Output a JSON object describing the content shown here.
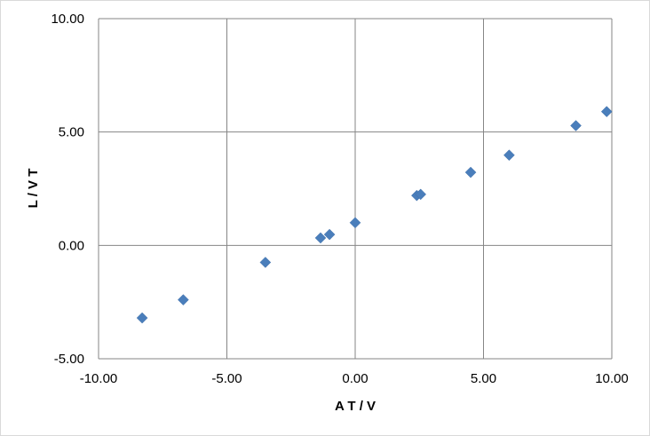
{
  "chart_data": {
    "type": "scatter",
    "title": "",
    "xlabel": "A T / V",
    "ylabel": "L / V T",
    "xlim": [
      -10,
      10
    ],
    "ylim": [
      -5,
      10
    ],
    "x_ticks": [
      -10,
      -5,
      0,
      5,
      10
    ],
    "y_ticks": [
      -5,
      0,
      5,
      10
    ],
    "x_tick_labels": [
      "-10.00",
      "-5.00",
      "0.00",
      "5.00",
      "10.00"
    ],
    "y_tick_labels": [
      "-5.00",
      "0.00",
      "5.00",
      "10.00"
    ],
    "grid": true,
    "legend": "none",
    "marker": "diamond",
    "color": "#4a7ebb",
    "series": [
      {
        "points": [
          {
            "x": -8.3,
            "y": -3.2
          },
          {
            "x": -6.7,
            "y": -2.4
          },
          {
            "x": -3.5,
            "y": -0.75
          },
          {
            "x": -1.35,
            "y": 0.33
          },
          {
            "x": -1.0,
            "y": 0.48
          },
          {
            "x": 0.0,
            "y": 1.0
          },
          {
            "x": 2.4,
            "y": 2.2
          },
          {
            "x": 2.55,
            "y": 2.25
          },
          {
            "x": 4.5,
            "y": 3.22
          },
          {
            "x": 6.0,
            "y": 3.98
          },
          {
            "x": 8.6,
            "y": 5.28
          },
          {
            "x": 9.8,
            "y": 5.9
          }
        ]
      }
    ]
  }
}
